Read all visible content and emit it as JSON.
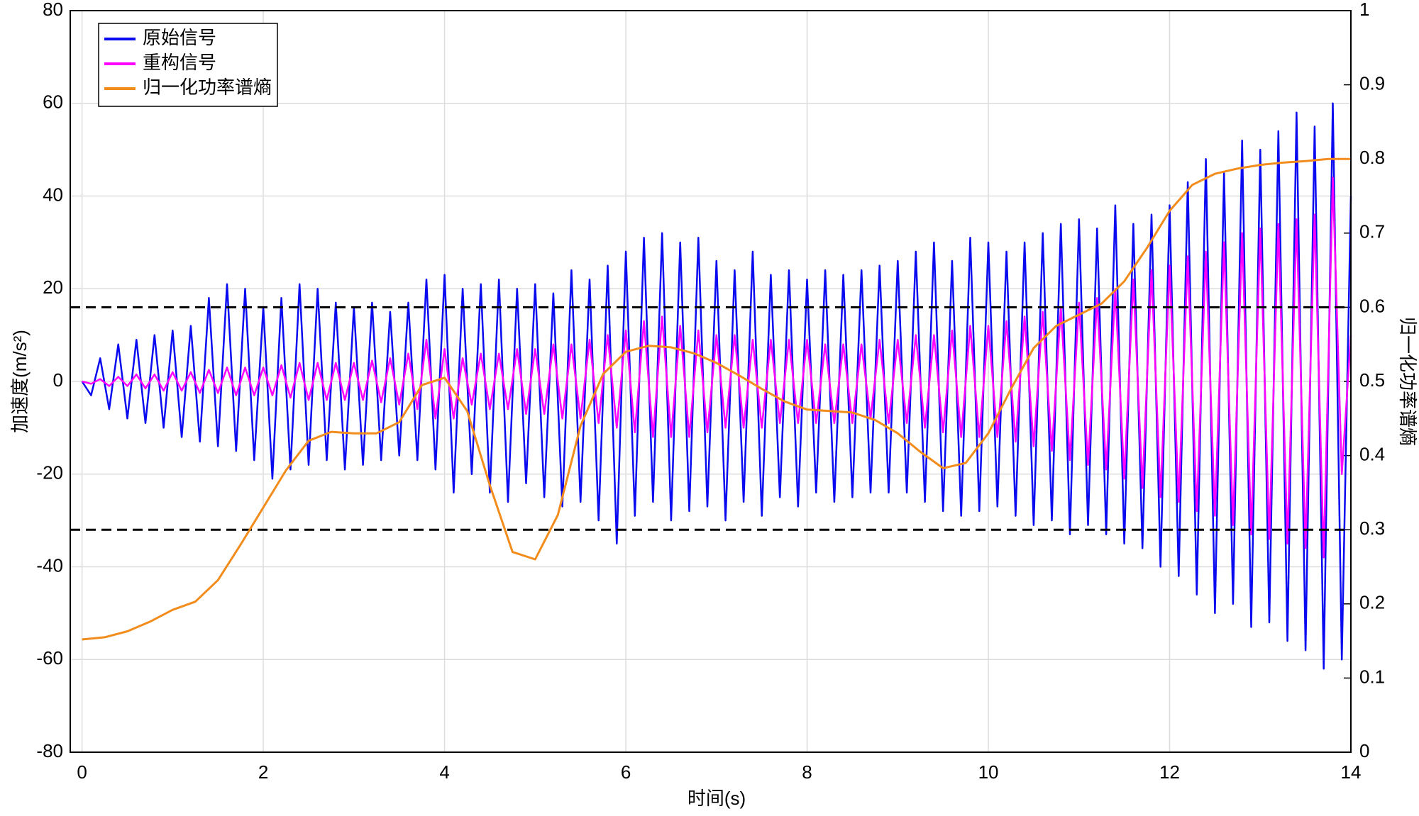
{
  "chart_data": {
    "type": "line",
    "x_label": "时间(s)",
    "y_label": "加速度(m/s²)",
    "y2_label": "归一化功率谱熵",
    "xlim": [
      -0.13,
      14
    ],
    "xticks": [
      0,
      2,
      4,
      6,
      8,
      10,
      12,
      14
    ],
    "ylim": [
      -80,
      80
    ],
    "yticks": [
      -80,
      -60,
      -40,
      -20,
      0,
      20,
      40,
      60,
      80
    ],
    "y2lim": [
      0,
      1
    ],
    "y2ticks": [
      0,
      0.1,
      0.2,
      0.3,
      0.4,
      0.5,
      0.6,
      0.7,
      0.8,
      0.9,
      1
    ],
    "grid": true,
    "legend": "upper left",
    "reference_lines": {
      "axis": "y2",
      "color": "#000000",
      "values": [
        0.6,
        0.3
      ]
    },
    "series": [
      {
        "name": "原始信号",
        "color": "#0a0af0",
        "x": [
          0,
          0.1,
          0.2,
          0.3,
          0.4,
          0.5,
          0.6,
          0.7,
          0.8,
          0.9,
          1,
          1.1,
          1.2,
          1.3,
          1.4,
          1.5,
          1.6,
          1.7,
          1.8,
          1.9,
          2,
          2.1,
          2.2,
          2.3,
          2.4,
          2.5,
          2.6,
          2.7,
          2.8,
          2.9,
          3,
          3.1,
          3.2,
          3.3,
          3.4,
          3.5,
          3.6,
          3.7,
          3.8,
          3.9,
          4,
          4.1,
          4.2,
          4.3,
          4.4,
          4.5,
          4.6,
          4.7,
          4.8,
          4.9,
          5,
          5.1,
          5.2,
          5.3,
          5.4,
          5.5,
          5.6,
          5.7,
          5.8,
          5.9,
          6,
          6.1,
          6.2,
          6.3,
          6.4,
          6.5,
          6.6,
          6.7,
          6.8,
          6.9,
          7,
          7.1,
          7.2,
          7.3,
          7.4,
          7.5,
          7.6,
          7.7,
          7.8,
          7.9,
          8,
          8.1,
          8.2,
          8.3,
          8.4,
          8.5,
          8.6,
          8.7,
          8.8,
          8.9,
          9,
          9.1,
          9.2,
          9.3,
          9.4,
          9.5,
          9.6,
          9.7,
          9.8,
          9.9,
          10,
          10.1,
          10.2,
          10.3,
          10.4,
          10.5,
          10.6,
          10.7,
          10.8,
          10.9,
          11,
          11.1,
          11.2,
          11.3,
          11.4,
          11.5,
          11.6,
          11.7,
          11.8,
          11.9,
          12,
          12.1,
          12.2,
          12.3,
          12.4,
          12.5,
          12.6,
          12.7,
          12.8,
          12.9,
          13,
          13.1,
          13.2,
          13.3,
          13.4,
          13.5,
          13.6,
          13.7,
          13.8,
          13.9,
          14
        ],
        "values": [
          0,
          -3,
          5,
          -6,
          8,
          -8,
          9,
          -9,
          10,
          -10,
          11,
          -12,
          12,
          -13,
          18,
          -14,
          21,
          -15,
          20,
          -17,
          16,
          -21,
          18,
          -19,
          21,
          -18,
          20,
          -17,
          17,
          -19,
          16,
          -18,
          17,
          -17,
          15,
          -16,
          17,
          -17,
          22,
          -19,
          23,
          -24,
          20,
          -20,
          21,
          -24,
          22,
          -26,
          20,
          -22,
          21,
          -25,
          19,
          -27,
          24,
          -26,
          22,
          -30,
          25,
          -35,
          28,
          -29,
          31,
          -26,
          32,
          -30,
          30,
          -28,
          31,
          -27,
          26,
          -30,
          24,
          -26,
          28,
          -29,
          23,
          -25,
          24,
          -27,
          22,
          -24,
          24,
          -26,
          23,
          -25,
          24,
          -24,
          25,
          -24,
          26,
          -24,
          28,
          -26,
          30,
          -28,
          26,
          -29,
          31,
          -28,
          30,
          -27,
          28,
          -29,
          30,
          -31,
          32,
          -30,
          34,
          -33,
          35,
          -31,
          33,
          -33,
          38,
          -35,
          34,
          -36,
          36,
          -40,
          38,
          -42,
          43,
          -46,
          48,
          -50,
          45,
          -48,
          52,
          -53,
          50,
          -52,
          54,
          -56,
          58,
          -58,
          55,
          -62,
          60,
          -60,
          40
        ]
      },
      {
        "name": "重构信号",
        "color": "#ff00ff",
        "x": [
          0,
          0.1,
          0.2,
          0.3,
          0.4,
          0.5,
          0.6,
          0.7,
          0.8,
          0.9,
          1,
          1.1,
          1.2,
          1.3,
          1.4,
          1.5,
          1.6,
          1.7,
          1.8,
          1.9,
          2,
          2.1,
          2.2,
          2.3,
          2.4,
          2.5,
          2.6,
          2.7,
          2.8,
          2.9,
          3,
          3.1,
          3.2,
          3.3,
          3.4,
          3.5,
          3.6,
          3.7,
          3.8,
          3.9,
          4,
          4.1,
          4.2,
          4.3,
          4.4,
          4.5,
          4.6,
          4.7,
          4.8,
          4.9,
          5,
          5.1,
          5.2,
          5.3,
          5.4,
          5.5,
          5.6,
          5.7,
          5.8,
          5.9,
          6,
          6.1,
          6.2,
          6.3,
          6.4,
          6.5,
          6.6,
          6.7,
          6.8,
          6.9,
          7,
          7.1,
          7.2,
          7.3,
          7.4,
          7.5,
          7.6,
          7.7,
          7.8,
          7.9,
          8,
          8.1,
          8.2,
          8.3,
          8.4,
          8.5,
          8.6,
          8.7,
          8.8,
          8.9,
          9,
          9.1,
          9.2,
          9.3,
          9.4,
          9.5,
          9.6,
          9.7,
          9.8,
          9.9,
          10,
          10.1,
          10.2,
          10.3,
          10.4,
          10.5,
          10.6,
          10.7,
          10.8,
          10.9,
          11,
          11.1,
          11.2,
          11.3,
          11.4,
          11.5,
          11.6,
          11.7,
          11.8,
          11.9,
          12,
          12.1,
          12.2,
          12.3,
          12.4,
          12.5,
          12.6,
          12.7,
          12.8,
          12.9,
          13,
          13.1,
          13.2,
          13.3,
          13.4,
          13.5,
          13.6,
          13.7,
          13.8,
          13.9,
          14
        ],
        "values": [
          0,
          -0.5,
          0.5,
          -1,
          1,
          -1,
          1.5,
          -1.5,
          1.5,
          -2,
          2,
          -2,
          2,
          -2.5,
          2.5,
          -2.5,
          3,
          -3,
          3,
          -3,
          3,
          -3,
          3.5,
          -3.5,
          4,
          -4,
          4,
          -4,
          4,
          -4,
          4,
          -4,
          4.5,
          -4.5,
          5,
          -5,
          6,
          -6,
          9,
          -8,
          7,
          -8,
          5,
          -5,
          6,
          -6,
          6,
          -6,
          7,
          -7,
          7,
          -7,
          8,
          -8,
          8,
          -8,
          9,
          -9,
          10,
          -10,
          11,
          -11,
          13,
          -12,
          14,
          -12,
          12,
          -12,
          11,
          -11,
          10,
          -10,
          10,
          -10,
          9,
          -10,
          9,
          -9,
          9,
          -9,
          9,
          -9,
          8,
          -9,
          8,
          -9,
          8,
          -8,
          9,
          -9,
          9,
          -9,
          10,
          -10,
          10,
          -11,
          11,
          -12,
          12,
          -12,
          12,
          -12,
          13,
          -13,
          14,
          -14,
          15,
          -15,
          16,
          -17,
          17,
          -18,
          18,
          -19,
          20,
          -21,
          22,
          -23,
          24,
          -25,
          25,
          -26,
          27,
          -28,
          28,
          -29,
          30,
          -31,
          32,
          -33,
          33,
          -34,
          34,
          -35,
          35,
          -36,
          36,
          -38,
          44,
          -20,
          10
        ]
      },
      {
        "name": "归一化功率谱熵",
        "color": "#f28c1c",
        "axis": "y2",
        "x": [
          0,
          0.25,
          0.5,
          0.75,
          1,
          1.25,
          1.5,
          1.75,
          2,
          2.25,
          2.5,
          2.75,
          3,
          3.25,
          3.5,
          3.75,
          4,
          4.25,
          4.5,
          4.75,
          5,
          5.25,
          5.5,
          5.75,
          6,
          6.25,
          6.5,
          6.75,
          7,
          7.25,
          7.5,
          7.75,
          8,
          8.25,
          8.5,
          8.75,
          9,
          9.25,
          9.5,
          9.75,
          10,
          10.25,
          10.5,
          10.75,
          11,
          11.25,
          11.5,
          11.75,
          12,
          12.25,
          12.5,
          12.75,
          13,
          13.25,
          13.5,
          13.75,
          14
        ],
        "values": [
          0.152,
          0.155,
          0.163,
          0.176,
          0.192,
          0.203,
          0.232,
          0.28,
          0.33,
          0.38,
          0.42,
          0.432,
          0.43,
          0.43,
          0.445,
          0.495,
          0.505,
          0.46,
          0.36,
          0.27,
          0.26,
          0.32,
          0.44,
          0.51,
          0.54,
          0.548,
          0.546,
          0.538,
          0.525,
          0.508,
          0.49,
          0.473,
          0.462,
          0.46,
          0.458,
          0.448,
          0.43,
          0.405,
          0.383,
          0.39,
          0.43,
          0.49,
          0.545,
          0.575,
          0.59,
          0.605,
          0.635,
          0.68,
          0.73,
          0.765,
          0.78,
          0.787,
          0.792,
          0.795,
          0.797,
          0.8,
          0.8
        ]
      }
    ]
  }
}
